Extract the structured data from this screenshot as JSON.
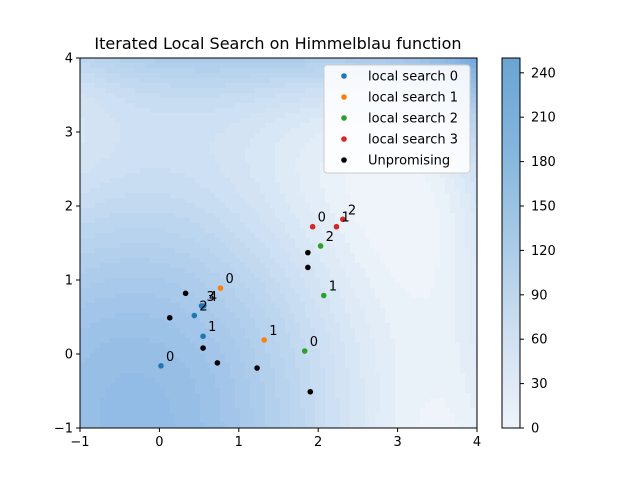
{
  "chart_data": {
    "type": "scatter",
    "title": "Iterated Local Search on Himmelblau function",
    "xlabel": "",
    "ylabel": "",
    "xlim": [
      -1,
      4
    ],
    "ylim": [
      -1,
      4
    ],
    "xticks": [
      "−1",
      "0",
      "1",
      "2",
      "3",
      "4"
    ],
    "yticks": [
      "−1",
      "0",
      "1",
      "2",
      "3",
      "4"
    ],
    "background": "contourf of Himmelblau function",
    "colorbar": {
      "min": 0,
      "max": 250,
      "ticks": [
        "0",
        "30",
        "60",
        "90",
        "120",
        "150",
        "180",
        "210",
        "240"
      ],
      "tick_values": [
        0,
        30,
        60,
        90,
        120,
        150,
        180,
        210,
        240
      ],
      "colormap": "Blues (alpha 0.6)"
    },
    "legend_position": "upper-right",
    "series": [
      {
        "name": "local search 0",
        "color": "#1f77b4",
        "points": [
          {
            "x": 0.02,
            "y": -0.16,
            "label": "0"
          },
          {
            "x": 0.55,
            "y": 0.24,
            "label": "1"
          },
          {
            "x": 0.44,
            "y": 0.52,
            "label": "2"
          },
          {
            "x": 0.53,
            "y": 0.65,
            "label": "3"
          },
          {
            "x": 0.56,
            "y": 0.65,
            "label": "4"
          }
        ]
      },
      {
        "name": "local search 1",
        "color": "#ff7f0e",
        "points": [
          {
            "x": 0.77,
            "y": 0.89,
            "label": "0"
          },
          {
            "x": 1.32,
            "y": 0.19,
            "label": "1"
          }
        ]
      },
      {
        "name": "local search 2",
        "color": "#2ca02c",
        "points": [
          {
            "x": 1.83,
            "y": 0.04,
            "label": "0"
          },
          {
            "x": 2.07,
            "y": 0.79,
            "label": "1"
          },
          {
            "x": 2.03,
            "y": 1.46,
            "label": "2"
          }
        ]
      },
      {
        "name": "local search 3",
        "color": "#d62728",
        "points": [
          {
            "x": 1.93,
            "y": 1.72,
            "label": "0"
          },
          {
            "x": 2.23,
            "y": 1.72,
            "label": "1"
          },
          {
            "x": 2.31,
            "y": 1.82,
            "label": "2"
          }
        ]
      },
      {
        "name": "Unpromising",
        "color": "#000000",
        "points": [
          {
            "x": 0.33,
            "y": 0.82
          },
          {
            "x": 0.13,
            "y": 0.49
          },
          {
            "x": 0.55,
            "y": 0.08
          },
          {
            "x": 0.73,
            "y": -0.12
          },
          {
            "x": 1.23,
            "y": -0.19
          },
          {
            "x": 1.87,
            "y": 1.37
          },
          {
            "x": 1.87,
            "y": 1.17
          },
          {
            "x": 1.9,
            "y": -0.51
          }
        ]
      }
    ]
  }
}
